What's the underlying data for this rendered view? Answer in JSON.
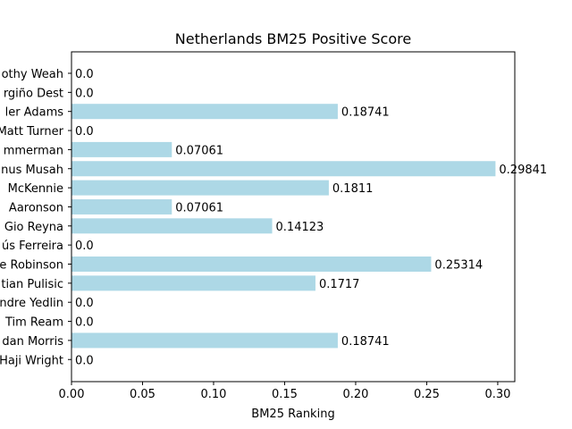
{
  "chart_data": {
    "type": "bar",
    "orientation": "horizontal",
    "title": "Netherlands BM25 Positive Score",
    "xlabel": "BM25 Ranking",
    "ylabel": "",
    "xlim": [
      0,
      0.312
    ],
    "xticks": [
      "0.00",
      "0.05",
      "0.10",
      "0.15",
      "0.20",
      "0.25",
      "0.30"
    ],
    "xtick_values": [
      0,
      0.05,
      0.1,
      0.15,
      0.2,
      0.25,
      0.3
    ],
    "bar_color": "#add8e6",
    "grid": false,
    "categories": [
      "Timothy Weah",
      "Sergiño Dest",
      "Tyler Adams",
      "Matt Turner",
      "Jordan Pefok / Zimmerman",
      "Yunus Musah",
      "Weston McKennie",
      "Brenden Aaronson",
      "Gio Reyna",
      "Jesús Ferreira",
      "Antonee Robinson",
      "Christian Pulisic",
      "DeAndre Yedlin",
      "Tim Ream",
      "Jordan Morris",
      "Haji Wright"
    ],
    "visible_category_labels": [
      "othy Weah",
      "rgiño Dest",
      "ler Adams",
      "Matt Turner",
      "mmerman",
      "nus Musah",
      " McKennie",
      " Aaronson",
      "Gio Reyna",
      "ús Ferreira",
      "e Robinson",
      "tian Pulisic",
      "ndre Yedlin",
      "Tim Ream",
      "dan Morris",
      "Haji Wright"
    ],
    "values": [
      0.0,
      0.0,
      0.18741,
      0.0,
      0.07061,
      0.29841,
      0.1811,
      0.07061,
      0.14123,
      0.0,
      0.25314,
      0.1717,
      0.0,
      0.0,
      0.18741,
      0.0
    ],
    "value_labels": [
      "0.0",
      "0.0",
      "0.18741",
      "0.0",
      "0.07061",
      "0.29841",
      "0.1811",
      "0.07061",
      "0.14123",
      "0.0",
      "0.25314",
      "0.1717",
      "0.0",
      "0.0",
      "0.18741",
      "0.0"
    ]
  }
}
